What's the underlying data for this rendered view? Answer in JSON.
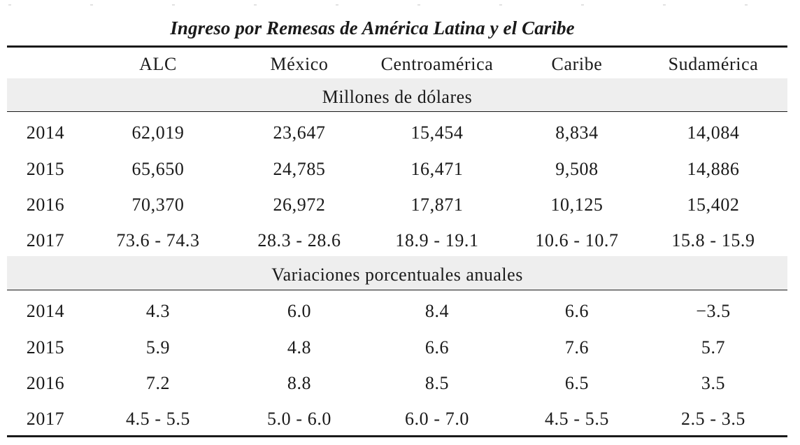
{
  "title": "Ingreso por Remesas de América  Latina y el Caribe",
  "columns": [
    "",
    "ALC",
    "México",
    "Centroamérica",
    "Caribe",
    "Sudamérica"
  ],
  "sections": [
    {
      "label": "Millones de dólares",
      "rows": [
        {
          "year": "2014",
          "values": [
            "62,019",
            "23,647",
            "15,454",
            "8,834",
            "14,084"
          ]
        },
        {
          "year": "2015",
          "values": [
            "65,650",
            "24,785",
            "16,471",
            "9,508",
            "14,886"
          ]
        },
        {
          "year": "2016",
          "values": [
            "70,370",
            "26,972",
            "17,871",
            "10,125",
            "15,402"
          ]
        },
        {
          "year": "2017",
          "values": [
            "73.6 - 74.3",
            "28.3 - 28.6",
            "18.9 - 19.1",
            "10.6 - 10.7",
            "15.8 - 15.9"
          ]
        }
      ]
    },
    {
      "label": "Variaciones porcentuales anuales",
      "rows": [
        {
          "year": "2014",
          "values": [
            "4.3",
            "6.0",
            "8.4",
            "6.6",
            "−3.5"
          ]
        },
        {
          "year": "2015",
          "values": [
            "5.9",
            "4.8",
            "6.6",
            "7.6",
            "5.7"
          ]
        },
        {
          "year": "2016",
          "values": [
            "7.2",
            "8.8",
            "8.5",
            "6.5",
            "3.5"
          ]
        },
        {
          "year": "2017",
          "values": [
            "4.5 - 5.5",
            "5.0 - 6.0",
            "6.0 - 7.0",
            "4.5 - 5.5",
            "2.5 - 3.5"
          ]
        }
      ]
    }
  ]
}
